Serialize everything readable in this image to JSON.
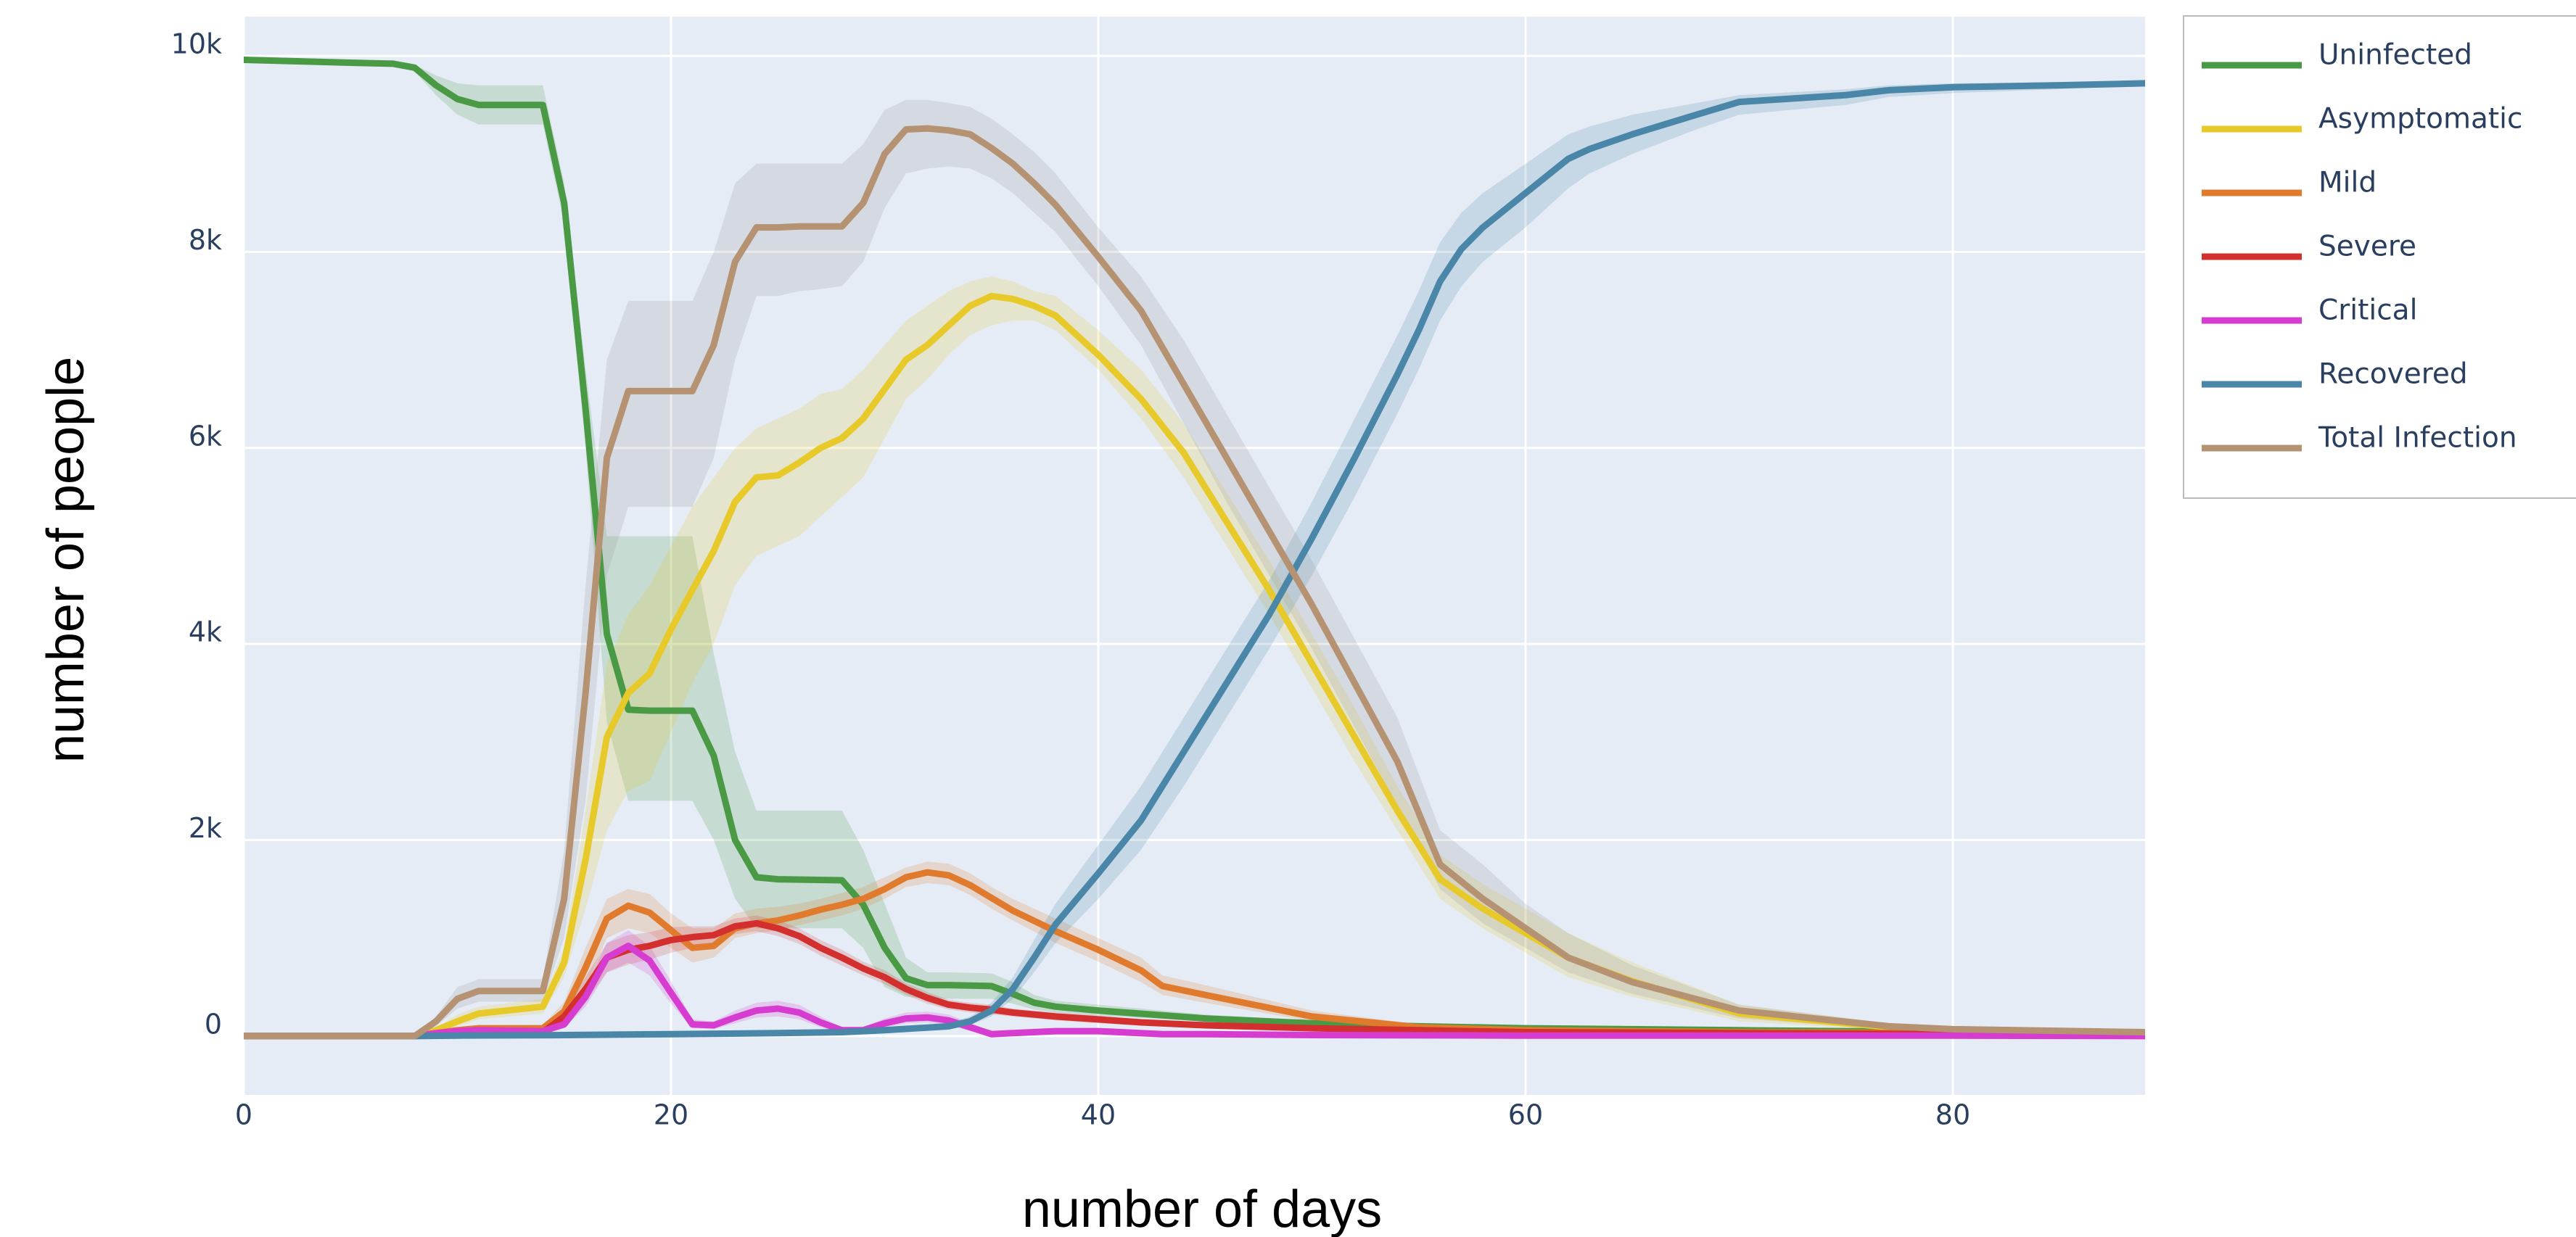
{
  "chart_data": {
    "type": "line",
    "xlabel": "number of days",
    "ylabel": "number of people",
    "xlim": [
      0,
      89
    ],
    "ylim": [
      -600,
      10400
    ],
    "x_ticks": [
      0,
      20,
      40,
      60,
      80
    ],
    "x_tick_labels": [
      "0",
      "20",
      "40",
      "60",
      "80"
    ],
    "y_ticks": [
      0,
      2000,
      4000,
      6000,
      8000,
      10000
    ],
    "y_tick_labels": [
      "0",
      "2k",
      "4k",
      "6k",
      "8k",
      "10k"
    ],
    "grid": true,
    "legend_position": "top-right",
    "background": "#e5ecf6",
    "series": [
      {
        "name": "Uninfected",
        "color": "#4a9a45",
        "band": "rgba(74,154,69,0.2)",
        "x": [
          0,
          5,
          7,
          8,
          9,
          10,
          11,
          14,
          15,
          16,
          17,
          18,
          19,
          20,
          21,
          22,
          23,
          24,
          25,
          28,
          29,
          30,
          31,
          32,
          33,
          35,
          36,
          37,
          38,
          40,
          45,
          50,
          55,
          60,
          70,
          80,
          89
        ],
        "y": [
          9960,
          9930,
          9920,
          9880,
          9700,
          9560,
          9500,
          9500,
          8500,
          6400,
          4100,
          3330,
          3320,
          3320,
          3320,
          2860,
          2000,
          1620,
          1600,
          1590,
          1340,
          900,
          590,
          520,
          520,
          510,
          430,
          340,
          300,
          260,
          180,
          130,
          100,
          80,
          60,
          40,
          30
        ],
        "lower": [
          9950,
          9920,
          9900,
          9840,
          9600,
          9400,
          9300,
          9300,
          8300,
          6000,
          3200,
          2400,
          2400,
          2400,
          2400,
          2000,
          1400,
          1100,
          1100,
          1100,
          900,
          500,
          400,
          380,
          380,
          380,
          330,
          270,
          240,
          210,
          150,
          110,
          90,
          70,
          50,
          30,
          20
        ],
        "upper": [
          9970,
          9940,
          9930,
          9910,
          9800,
          9720,
          9700,
          9700,
          8700,
          6800,
          5100,
          5100,
          5100,
          5100,
          5100,
          3900,
          2900,
          2300,
          2300,
          2300,
          1900,
          1350,
          800,
          650,
          650,
          640,
          550,
          420,
          360,
          320,
          220,
          160,
          120,
          95,
          70,
          50,
          40
        ]
      },
      {
        "name": "Asymptomatic",
        "color": "#e8c92a",
        "band": "rgba(232,201,42,0.2)",
        "x": [
          0,
          8,
          9,
          10,
          11,
          14,
          15,
          16,
          17,
          18,
          19,
          20,
          21,
          22,
          23,
          24,
          25,
          26,
          27,
          28,
          29,
          30,
          31,
          32,
          33,
          34,
          35,
          36,
          37,
          38,
          40,
          42,
          44,
          46,
          48,
          50,
          52,
          54,
          56,
          58,
          60,
          62,
          65,
          70,
          77,
          80,
          89
        ],
        "y": [
          0,
          0,
          60,
          150,
          230,
          300,
          750,
          1800,
          3050,
          3500,
          3700,
          4150,
          4550,
          4950,
          5450,
          5700,
          5720,
          5850,
          6000,
          6100,
          6300,
          6600,
          6900,
          7050,
          7250,
          7450,
          7550,
          7520,
          7450,
          7350,
          6950,
          6500,
          5950,
          5250,
          4550,
          3800,
          3050,
          2300,
          1600,
          1300,
          1050,
          800,
          560,
          230,
          90,
          60,
          30
        ],
        "lower": [
          0,
          0,
          40,
          100,
          170,
          230,
          600,
          1300,
          2100,
          2500,
          2600,
          3100,
          3600,
          4000,
          4600,
          4900,
          5000,
          5100,
          5300,
          5500,
          5700,
          6100,
          6500,
          6700,
          6950,
          7150,
          7250,
          7300,
          7300,
          7200,
          6800,
          6300,
          5700,
          5000,
          4300,
          3550,
          2800,
          2100,
          1400,
          1100,
          850,
          600,
          400,
          150,
          60,
          40,
          20
        ],
        "upper": [
          0,
          0,
          80,
          220,
          300,
          380,
          900,
          2300,
          3800,
          4300,
          4600,
          5000,
          5400,
          5700,
          6000,
          6200,
          6300,
          6400,
          6550,
          6600,
          6800,
          7050,
          7300,
          7450,
          7600,
          7700,
          7750,
          7700,
          7600,
          7550,
          7200,
          6800,
          6250,
          5550,
          4850,
          4100,
          3350,
          2550,
          1850,
          1550,
          1300,
          1050,
          750,
          320,
          130,
          90,
          45
        ]
      },
      {
        "name": "Mild",
        "color": "#e07b2e",
        "band": "rgba(224,123,46,0.2)",
        "x": [
          0,
          8,
          9,
          10,
          11,
          14,
          15,
          16,
          17,
          18,
          19,
          20,
          21,
          22,
          23,
          24,
          25,
          26,
          27,
          28,
          29,
          30,
          31,
          32,
          33,
          34,
          35,
          36,
          38,
          40,
          42,
          43,
          45,
          50,
          55,
          60,
          70,
          80,
          89
        ],
        "y": [
          0,
          0,
          30,
          60,
          80,
          80,
          250,
          700,
          1200,
          1330,
          1260,
          1080,
          900,
          920,
          1100,
          1150,
          1180,
          1230,
          1290,
          1340,
          1400,
          1500,
          1620,
          1670,
          1640,
          1540,
          1410,
          1280,
          1070,
          880,
          670,
          510,
          420,
          200,
          90,
          60,
          40,
          30,
          20
        ],
        "lower": [
          0,
          0,
          20,
          40,
          50,
          50,
          150,
          500,
          1000,
          1100,
          1050,
          900,
          750,
          800,
          1000,
          1050,
          1080,
          1130,
          1180,
          1230,
          1300,
          1400,
          1520,
          1560,
          1540,
          1440,
          1300,
          1180,
          950,
          760,
          550,
          420,
          340,
          150,
          60,
          40,
          30,
          20,
          10
        ],
        "upper": [
          0,
          0,
          40,
          90,
          110,
          110,
          350,
          900,
          1400,
          1500,
          1450,
          1250,
          1100,
          1100,
          1250,
          1300,
          1320,
          1350,
          1400,
          1460,
          1520,
          1620,
          1720,
          1780,
          1760,
          1660,
          1520,
          1400,
          1200,
          1000,
          800,
          620,
          520,
          260,
          120,
          80,
          50,
          40,
          30
        ]
      },
      {
        "name": "Severe",
        "color": "#d32f2f",
        "band": "rgba(211,47,47,0.18)",
        "x": [
          0,
          8,
          9,
          10,
          11,
          14,
          15,
          16,
          17,
          18,
          19,
          20,
          21,
          22,
          23,
          24,
          25,
          26,
          27,
          28,
          29,
          30,
          31,
          32,
          33,
          34,
          35,
          36,
          38,
          40,
          42,
          45,
          50,
          55,
          60,
          70,
          80,
          89
        ],
        "y": [
          0,
          0,
          20,
          40,
          50,
          40,
          200,
          480,
          800,
          880,
          920,
          980,
          1010,
          1030,
          1120,
          1150,
          1100,
          1020,
          900,
          800,
          690,
          600,
          480,
          390,
          320,
          290,
          270,
          240,
          200,
          170,
          140,
          110,
          80,
          60,
          40,
          30,
          20,
          10
        ],
        "lower": [
          0,
          0,
          10,
          20,
          30,
          20,
          120,
          350,
          650,
          730,
          780,
          850,
          900,
          940,
          1040,
          1070,
          1020,
          940,
          820,
          720,
          620,
          530,
          420,
          330,
          270,
          240,
          220,
          200,
          160,
          130,
          110,
          80,
          60,
          40,
          30,
          20,
          10,
          5
        ],
        "upper": [
          0,
          0,
          30,
          60,
          70,
          60,
          280,
          600,
          950,
          1030,
          1060,
          1110,
          1120,
          1120,
          1200,
          1230,
          1180,
          1100,
          980,
          880,
          760,
          670,
          540,
          450,
          370,
          340,
          320,
          280,
          240,
          210,
          170,
          140,
          100,
          80,
          50,
          40,
          30,
          15
        ]
      },
      {
        "name": "Critical",
        "color": "#d63ccf",
        "band": "rgba(214,60,207,0.2)",
        "x": [
          0,
          8,
          9,
          10,
          11,
          14,
          15,
          16,
          17,
          18,
          19,
          20,
          21,
          22,
          23,
          24,
          25,
          26,
          27,
          28,
          29,
          30,
          31,
          32,
          33,
          34,
          35,
          36,
          38,
          40,
          43,
          45,
          50,
          60,
          70,
          80,
          89
        ],
        "y": [
          0,
          0,
          30,
          50,
          60,
          50,
          120,
          400,
          800,
          920,
          770,
          440,
          120,
          110,
          190,
          260,
          280,
          240,
          140,
          60,
          60,
          130,
          180,
          190,
          160,
          90,
          20,
          30,
          50,
          50,
          20,
          20,
          10,
          5,
          5,
          5,
          0
        ],
        "lower": [
          0,
          0,
          20,
          30,
          40,
          30,
          80,
          300,
          650,
          750,
          620,
          330,
          80,
          70,
          130,
          190,
          200,
          170,
          90,
          30,
          30,
          90,
          130,
          140,
          110,
          50,
          10,
          15,
          30,
          30,
          10,
          10,
          5,
          0,
          0,
          0,
          0
        ],
        "upper": [
          0,
          0,
          40,
          70,
          80,
          70,
          170,
          500,
          950,
          1080,
          920,
          560,
          170,
          150,
          260,
          340,
          360,
          320,
          200,
          90,
          90,
          180,
          240,
          250,
          220,
          140,
          40,
          50,
          80,
          80,
          40,
          35,
          20,
          10,
          10,
          10,
          5
        ]
      },
      {
        "name": "Recovered",
        "color": "#4a86a8",
        "band": "rgba(74,134,168,0.2)",
        "x": [
          0,
          8,
          10,
          15,
          20,
          25,
          28,
          30,
          33,
          34,
          35,
          36,
          37,
          38,
          40,
          42,
          44,
          46,
          48,
          50,
          52,
          54,
          55,
          56,
          57,
          58,
          60,
          62,
          63,
          65,
          68,
          70,
          75,
          77,
          80,
          85,
          89
        ],
        "y": [
          0,
          0,
          5,
          10,
          20,
          30,
          40,
          60,
          100,
          150,
          260,
          480,
          800,
          1140,
          1660,
          2200,
          2900,
          3600,
          4300,
          5080,
          5900,
          6750,
          7200,
          7700,
          8030,
          8250,
          8600,
          8950,
          9050,
          9200,
          9400,
          9530,
          9600,
          9650,
          9680,
          9700,
          9720
        ],
        "lower": [
          0,
          0,
          0,
          5,
          10,
          20,
          30,
          40,
          70,
          110,
          200,
          380,
          650,
          950,
          1400,
          1900,
          2550,
          3250,
          3950,
          4700,
          5500,
          6350,
          6800,
          7300,
          7650,
          7900,
          8250,
          8650,
          8800,
          9000,
          9250,
          9400,
          9500,
          9580,
          9620,
          9660,
          9700
        ],
        "upper": [
          0,
          0,
          10,
          15,
          30,
          40,
          50,
          80,
          130,
          200,
          340,
          600,
          980,
          1350,
          1950,
          2550,
          3250,
          3950,
          4650,
          5450,
          6300,
          7150,
          7600,
          8100,
          8400,
          8600,
          8900,
          9200,
          9280,
          9400,
          9520,
          9600,
          9660,
          9700,
          9720,
          9730,
          9740
        ]
      },
      {
        "name": "Total Infection",
        "color": "#b59272",
        "band": "rgba(150,150,150,0.2)",
        "x": [
          0,
          8,
          9,
          10,
          11,
          14,
          15,
          16,
          17,
          18,
          19,
          20,
          21,
          22,
          23,
          24,
          25,
          26,
          27,
          28,
          29,
          30,
          31,
          32,
          33,
          34,
          35,
          36,
          37,
          38,
          40,
          42,
          44,
          46,
          48,
          50,
          52,
          54,
          56,
          58,
          60,
          62,
          65,
          70,
          77,
          80,
          89
        ],
        "y": [
          0,
          0,
          150,
          380,
          460,
          460,
          1400,
          3500,
          5900,
          6580,
          6580,
          6580,
          6580,
          7050,
          7900,
          8250,
          8250,
          8260,
          8260,
          8260,
          8500,
          9000,
          9250,
          9260,
          9240,
          9200,
          9060,
          8900,
          8700,
          8480,
          7950,
          7400,
          6650,
          5900,
          5150,
          4400,
          3600,
          2800,
          1750,
          1400,
          1100,
          800,
          550,
          260,
          100,
          70,
          40
        ],
        "lower": [
          0,
          0,
          100,
          280,
          350,
          350,
          1000,
          2400,
          4700,
          5400,
          5400,
          5400,
          5400,
          5900,
          6900,
          7550,
          7550,
          7600,
          7620,
          7650,
          7900,
          8450,
          8800,
          8850,
          8870,
          8850,
          8750,
          8600,
          8400,
          8200,
          7650,
          7050,
          6250,
          5450,
          4700,
          3950,
          3150,
          2350,
          1500,
          1150,
          900,
          650,
          430,
          180,
          70,
          50,
          30
        ],
        "upper": [
          0,
          0,
          200,
          500,
          580,
          580,
          1900,
          4600,
          6900,
          7500,
          7500,
          7500,
          7500,
          8000,
          8700,
          8900,
          8900,
          8900,
          8900,
          8900,
          9100,
          9450,
          9550,
          9550,
          9520,
          9480,
          9360,
          9200,
          9020,
          8800,
          8250,
          7750,
          7100,
          6350,
          5600,
          4850,
          4050,
          3250,
          2100,
          1750,
          1350,
          1050,
          720,
          320,
          130,
          90,
          50
        ]
      }
    ]
  }
}
